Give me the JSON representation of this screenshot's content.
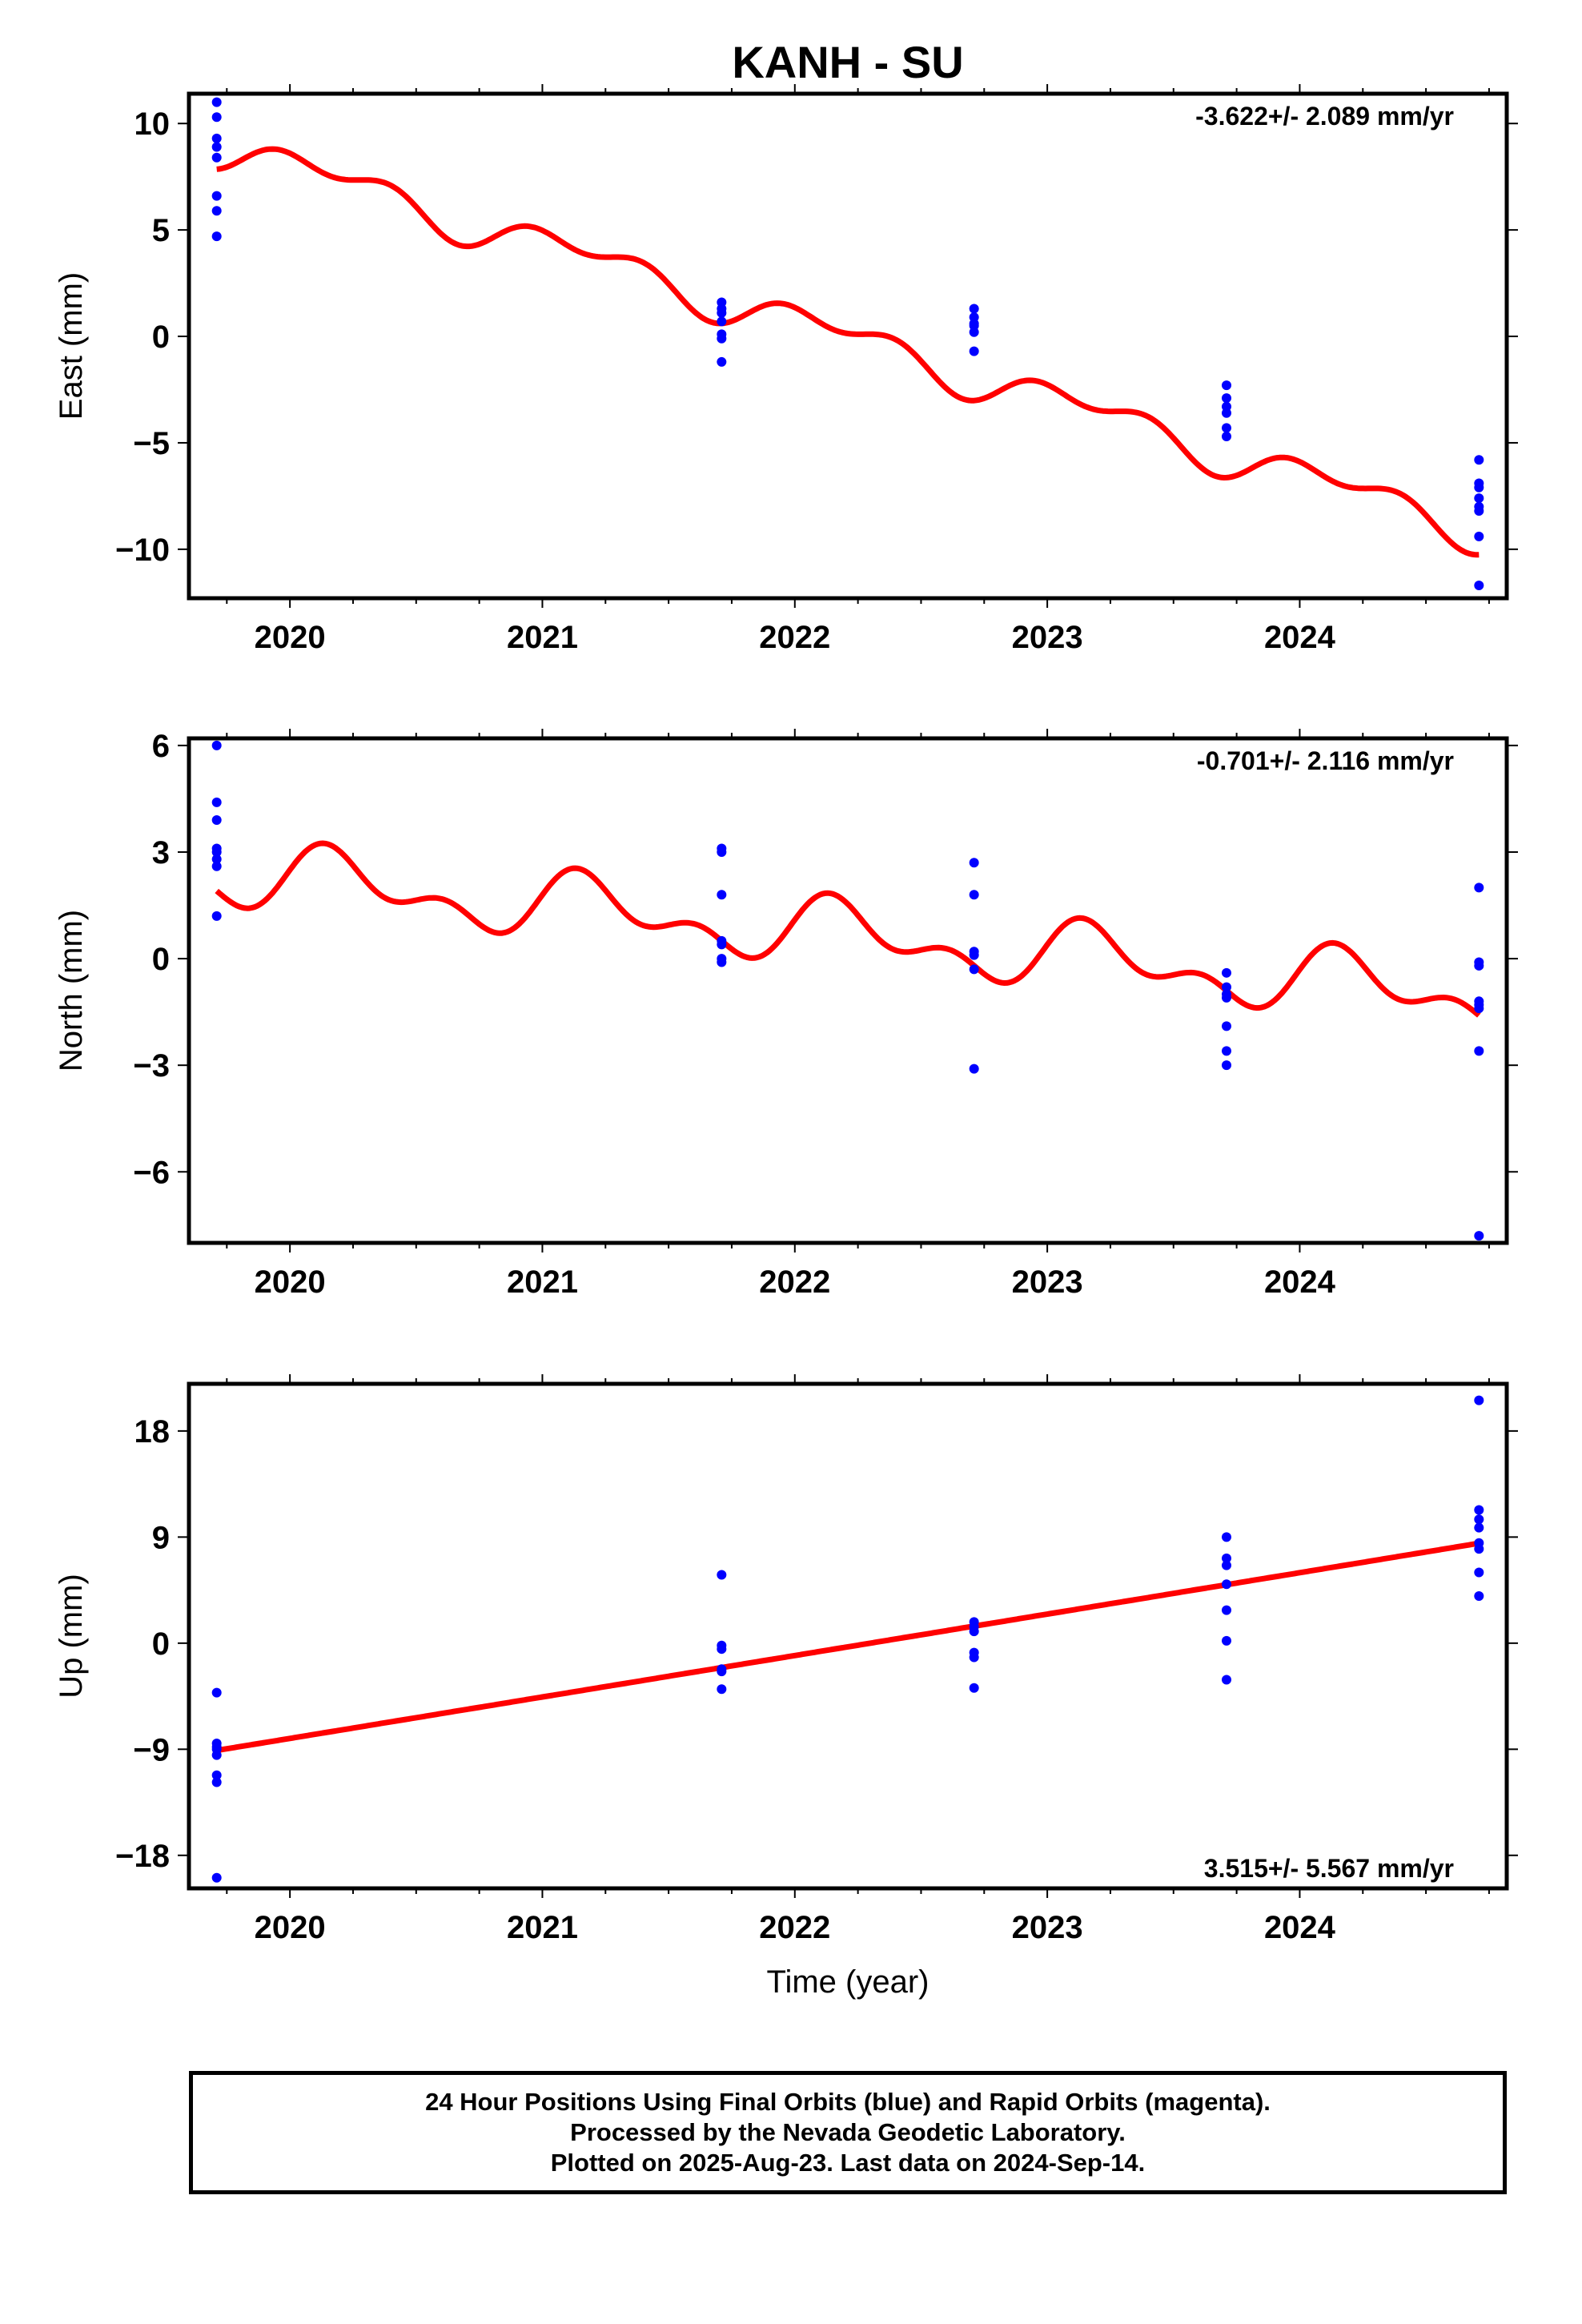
{
  "title": "KANH - SU",
  "x_label": "Time (year)",
  "colors": {
    "data_points": "#0000ff",
    "model_line": "#ff0000",
    "frame": "#000000"
  },
  "footer": {
    "line1": "24 Hour Positions Using Final Orbits (blue) and Rapid Orbits (magenta).",
    "line2": "Processed by the Nevada Geodetic Laboratory.",
    "line3": "Plotted on 2025-Aug-23. Last data on 2024-Sep-14."
  },
  "chart_data": [
    {
      "type": "scatter",
      "component": "east",
      "ylabel": "East (mm)",
      "rate_label": "-3.622+/- 2.089 mm/yr",
      "rate_position": "top-right",
      "xlim": [
        2019.6,
        2024.82
      ],
      "ylim": [
        -12.3,
        11.4
      ],
      "x_ticks": [
        2020,
        2021,
        2022,
        2023,
        2024
      ],
      "x_tick_labels": [
        "2020",
        "2021",
        "2022",
        "2023",
        "2024"
      ],
      "y_ticks": [
        10,
        5,
        0,
        -5,
        -10
      ],
      "y_tick_labels": [
        "10",
        "5",
        "0",
        "−5",
        "−10"
      ],
      "grid": false,
      "series": [
        {
          "kind": "points",
          "x": [
            2019.71,
            2019.71,
            2019.71,
            2019.71,
            2019.71,
            2019.71,
            2019.71,
            2019.71,
            2021.71,
            2021.71,
            2021.71,
            2021.71,
            2021.71,
            2021.71,
            2021.71,
            2022.71,
            2022.71,
            2022.71,
            2022.71,
            2022.71,
            2022.71,
            2023.71,
            2023.71,
            2023.71,
            2023.71,
            2023.71,
            2023.71,
            2024.71,
            2024.71,
            2024.71,
            2024.71,
            2024.71,
            2024.71,
            2024.71,
            2024.71
          ],
          "y": [
            11.0,
            10.3,
            8.9,
            8.4,
            6.6,
            5.9,
            4.7,
            9.3,
            1.6,
            1.3,
            1.1,
            0.7,
            0.1,
            -0.1,
            -1.2,
            1.3,
            0.9,
            0.6,
            0.5,
            0.2,
            -0.7,
            -2.3,
            -2.9,
            -3.3,
            -3.6,
            -4.3,
            -4.7,
            -5.8,
            -6.9,
            -7.1,
            -7.6,
            -8.0,
            -8.2,
            -9.4,
            -11.7
          ]
        },
        {
          "kind": "model",
          "x0": 2019.71,
          "x1": 2024.71,
          "offset_at_x0": 9.0,
          "rate_mm_per_yr": -3.622,
          "annual": {
            "cos": 0.35,
            "sin": 0.6
          },
          "semiannual": {
            "cos": 0.3,
            "sin": -0.45
          }
        }
      ]
    },
    {
      "type": "scatter",
      "component": "north",
      "ylabel": "North (mm)",
      "rate_label": "-0.701+/- 2.116 mm/yr",
      "rate_position": "top-right",
      "xlim": [
        2019.6,
        2024.82
      ],
      "ylim": [
        -8.0,
        6.2
      ],
      "x_ticks": [
        2020,
        2021,
        2022,
        2023,
        2024
      ],
      "x_tick_labels": [
        "2020",
        "2021",
        "2022",
        "2023",
        "2024"
      ],
      "y_ticks": [
        6,
        3,
        0,
        -3,
        -6
      ],
      "y_tick_labels": [
        "6",
        "3",
        "0",
        "−3",
        "−6"
      ],
      "grid": false,
      "series": [
        {
          "kind": "points",
          "x": [
            2019.71,
            2019.71,
            2019.71,
            2019.71,
            2019.71,
            2019.71,
            2019.71,
            2019.71,
            2021.71,
            2021.71,
            2021.71,
            2021.71,
            2021.71,
            2021.71,
            2021.71,
            2022.71,
            2022.71,
            2022.71,
            2022.71,
            2022.71,
            2022.71,
            2023.71,
            2023.71,
            2023.71,
            2023.71,
            2023.71,
            2023.71,
            2023.71,
            2024.71,
            2024.71,
            2024.71,
            2024.71,
            2024.71,
            2024.71,
            2024.71,
            2024.71
          ],
          "y": [
            6.0,
            4.4,
            3.9,
            3.1,
            3.0,
            2.8,
            2.6,
            1.2,
            3.1,
            3.0,
            1.8,
            0.5,
            0.4,
            0.0,
            -0.1,
            2.7,
            1.8,
            0.1,
            -0.3,
            0.2,
            -3.1,
            -0.4,
            -0.8,
            -1.0,
            -1.9,
            -2.6,
            -3.0,
            -1.1,
            2.0,
            -0.1,
            -0.2,
            -1.2,
            -1.4,
            -1.3,
            -2.6,
            -7.8
          ]
        },
        {
          "kind": "model",
          "x0": 2019.71,
          "x1": 2024.71,
          "offset_at_x0": 2.4,
          "rate_mm_per_yr": -0.701,
          "annual": {
            "cos": 0.25,
            "sin": 0.65
          },
          "semiannual": {
            "cos": 0.05,
            "sin": 0.5
          }
        }
      ]
    },
    {
      "type": "scatter",
      "component": "up",
      "ylabel": "Up (mm)",
      "rate_label": "3.515+/- 5.567 mm/yr",
      "rate_position": "bottom-right",
      "xlim": [
        2019.6,
        2024.82
      ],
      "ylim": [
        -20.8,
        22.0
      ],
      "x_ticks": [
        2020,
        2021,
        2022,
        2023,
        2024
      ],
      "x_tick_labels": [
        "2020",
        "2021",
        "2022",
        "2023",
        "2024"
      ],
      "y_ticks": [
        18,
        9,
        0,
        -9,
        -18
      ],
      "y_tick_labels": [
        "18",
        "9",
        "0",
        "−9",
        "−18"
      ],
      "grid": false,
      "series": [
        {
          "kind": "points",
          "x": [
            2019.71,
            2019.71,
            2019.71,
            2019.71,
            2019.71,
            2019.71,
            2019.71,
            2019.71,
            2021.71,
            2021.71,
            2021.71,
            2021.71,
            2021.71,
            2021.71,
            2022.71,
            2022.71,
            2022.71,
            2022.71,
            2022.71,
            2022.71,
            2023.71,
            2023.71,
            2023.71,
            2023.71,
            2023.71,
            2023.71,
            2023.71,
            2024.71,
            2024.71,
            2024.71,
            2024.71,
            2024.71,
            2024.71,
            2024.71,
            2024.71
          ],
          "y": [
            -4.2,
            -8.5,
            -8.8,
            -9.5,
            -11.2,
            -11.8,
            -19.9,
            -9.0,
            5.8,
            -0.2,
            -0.5,
            -2.2,
            -2.4,
            -3.9,
            1.8,
            1.4,
            -0.8,
            -1.2,
            -3.8,
            1.0,
            9.0,
            7.2,
            6.6,
            5.0,
            2.8,
            0.2,
            -3.1,
            20.6,
            11.3,
            10.5,
            9.8,
            8.0,
            6.0,
            4.0,
            8.5
          ]
        },
        {
          "kind": "model",
          "x0": 2019.71,
          "x1": 2024.71,
          "offset_at_x0": -9.1,
          "rate_mm_per_yr": 3.515,
          "annual": {
            "cos": 0.0,
            "sin": 0.0
          },
          "semiannual": {
            "cos": 0.0,
            "sin": 0.0
          }
        }
      ]
    }
  ]
}
